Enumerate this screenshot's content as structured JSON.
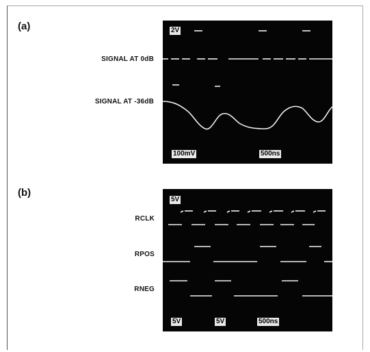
{
  "panels": {
    "a": {
      "label": "(a)",
      "signal_labels": [
        "SIGNAL AT 0dB",
        "SIGNAL AT -36dB"
      ],
      "badges": {
        "top": "2V",
        "bottom_left": "100mV",
        "bottom_right": "500ns"
      }
    },
    "b": {
      "label": "(b)",
      "signal_labels": [
        "RCLK",
        "RPOS",
        "RNEG"
      ],
      "badges": {
        "top": "5V",
        "bottom_1": "5V",
        "bottom_2": "5V",
        "bottom_3": "500ns"
      }
    }
  },
  "colors": {
    "screen": "#050505",
    "trace": "#f2f2f2",
    "badge": "#e9e9e9"
  }
}
